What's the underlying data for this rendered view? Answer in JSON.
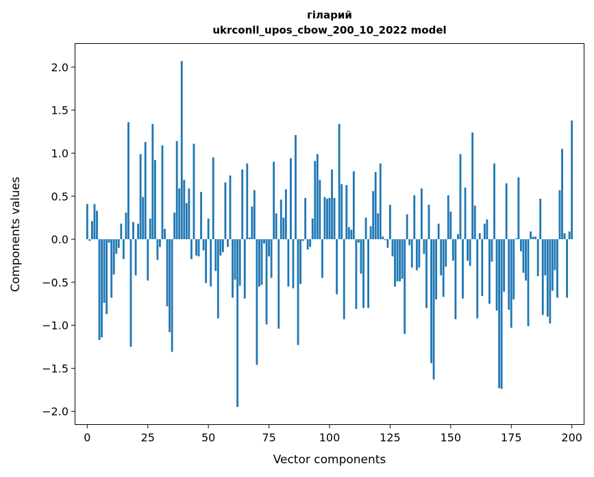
{
  "chart_data": {
    "type": "bar",
    "title": "гiларий",
    "subtitle": "ukrconll_upos_cbow_200_10_2022 model",
    "xlabel": "Vector components",
    "ylabel": "Components values",
    "xlim": [
      -4.9,
      204.9
    ],
    "ylim": [
      -2.15,
      2.27
    ],
    "xticks": [
      0,
      25,
      50,
      75,
      100,
      125,
      150,
      175,
      200
    ],
    "yticks": [
      -2.0,
      -1.5,
      -1.0,
      -0.5,
      0.0,
      0.5,
      1.0,
      1.5,
      2.0
    ],
    "ytick_labels": [
      "−2.0",
      "−1.5",
      "−1.0",
      "−0.5",
      "0.0",
      "0.5",
      "1.0",
      "1.5",
      "2.0"
    ],
    "bar_color": "#1f77b4",
    "values": [
      0.41,
      -0.02,
      0.21,
      0.41,
      0.33,
      -1.17,
      -1.14,
      -0.74,
      -0.87,
      -0.04,
      -0.68,
      -0.41,
      -0.17,
      -0.1,
      0.18,
      -0.23,
      0.31,
      1.36,
      -1.25,
      0.2,
      -0.42,
      0.18,
      0.99,
      0.49,
      1.13,
      -0.48,
      0.24,
      1.34,
      0.92,
      -0.24,
      -0.09,
      1.09,
      0.12,
      -0.78,
      -1.08,
      -1.31,
      0.31,
      1.14,
      0.59,
      2.07,
      0.69,
      0.42,
      0.59,
      -0.23,
      1.11,
      -0.19,
      -0.2,
      0.55,
      -0.13,
      -0.51,
      0.24,
      -0.55,
      0.95,
      -0.37,
      -0.92,
      -0.19,
      -0.15,
      0.66,
      -0.09,
      0.74,
      -0.68,
      -0.47,
      -1.95,
      -0.54,
      0.81,
      -0.69,
      0.88,
      0.02,
      0.38,
      0.57,
      -1.46,
      -0.55,
      -0.53,
      -0.05,
      -0.99,
      -0.2,
      -0.45,
      0.9,
      0.3,
      -1.04,
      0.46,
      0.25,
      0.58,
      -0.55,
      0.94,
      -0.57,
      1.21,
      -1.23,
      -0.52,
      -0.02,
      0.48,
      -0.12,
      -0.09,
      0.24,
      0.91,
      0.99,
      0.69,
      -0.45,
      0.49,
      0.47,
      0.48,
      0.81,
      0.48,
      -0.64,
      1.34,
      0.64,
      -0.93,
      0.63,
      0.14,
      0.11,
      0.79,
      -0.81,
      -0.04,
      -0.4,
      -0.8,
      0.25,
      -0.8,
      0.15,
      0.56,
      0.78,
      0.3,
      0.88,
      0.03,
      -0.01,
      -0.1,
      0.4,
      -0.2,
      -0.55,
      -0.49,
      -0.49,
      -0.46,
      -1.1,
      0.29,
      -0.07,
      -0.33,
      0.51,
      -0.36,
      -0.33,
      0.59,
      -0.17,
      -0.8,
      0.4,
      -1.44,
      -1.63,
      -0.7,
      0.18,
      -0.42,
      -0.67,
      -0.32,
      0.51,
      0.32,
      -0.25,
      -0.93,
      0.06,
      0.99,
      -0.69,
      0.6,
      -0.25,
      -0.31,
      1.24,
      0.39,
      -0.92,
      0.07,
      -0.66,
      0.18,
      0.23,
      -0.75,
      -0.26,
      0.88,
      -0.83,
      -1.73,
      -1.74,
      -0.61,
      0.65,
      -0.82,
      -1.03,
      -0.7,
      0.01,
      0.72,
      -0.14,
      -0.39,
      -0.48,
      -1.01,
      0.09,
      0.03,
      0.03,
      -0.43,
      0.47,
      -0.88,
      -0.42,
      -0.9,
      -0.98,
      -0.6,
      -0.36,
      -0.68,
      0.57,
      1.05,
      0.07,
      -0.68,
      0.09,
      1.38
    ]
  }
}
